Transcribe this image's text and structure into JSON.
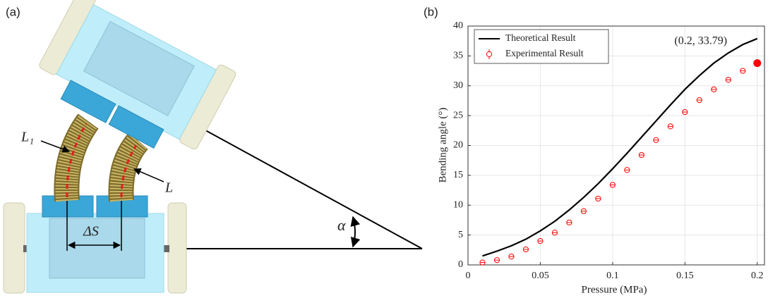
{
  "diagram": {
    "panel_label": "(a)",
    "outer_length": "L₁",
    "inner_length": "L",
    "offset": "ΔS",
    "angle": "α"
  },
  "chart_data": {
    "type": "line",
    "panel_label": "(b)",
    "x_label": "Pressure (MPa)",
    "y_label": "Bending angle (°)",
    "xlim": [
      0,
      0.205
    ],
    "xticks": [
      0,
      0.05,
      0.1,
      0.15,
      0.2
    ],
    "ylim": [
      0,
      40
    ],
    "yticks": [
      0,
      5,
      10,
      15,
      20,
      25,
      30,
      35,
      40
    ],
    "grid": true,
    "legend": "upper left",
    "series": [
      {
        "name": "Theoretical Result",
        "color": "#000000",
        "style": "line",
        "x": [
          0.01,
          0.02,
          0.03,
          0.04,
          0.05,
          0.06,
          0.07,
          0.08,
          0.09,
          0.1,
          0.11,
          0.12,
          0.13,
          0.14,
          0.15,
          0.16,
          0.17,
          0.18,
          0.19,
          0.2
        ],
        "values": [
          1.5,
          2.3,
          3.2,
          4.3,
          5.7,
          7.3,
          9.2,
          11.3,
          13.6,
          16.1,
          18.7,
          21.4,
          24.1,
          26.8,
          29.4,
          31.7,
          33.8,
          35.5,
          36.9,
          37.9
        ]
      },
      {
        "name": "Experimental Result",
        "color": "#ff0000",
        "style": "marker",
        "x": [
          0.01,
          0.02,
          0.03,
          0.04,
          0.05,
          0.06,
          0.07,
          0.08,
          0.09,
          0.1,
          0.11,
          0.12,
          0.13,
          0.14,
          0.15,
          0.16,
          0.17,
          0.18,
          0.19
        ],
        "values": [
          0.4,
          0.8,
          1.4,
          2.6,
          4.0,
          5.4,
          7.1,
          9.0,
          11.1,
          13.4,
          15.9,
          18.4,
          20.9,
          23.2,
          25.6,
          27.6,
          29.4,
          31.0,
          32.5
        ]
      }
    ],
    "highlight_point": {
      "x": 0.2,
      "y": 33.79,
      "label": "(0.2, 33.79)",
      "color": "#ff0000"
    }
  }
}
